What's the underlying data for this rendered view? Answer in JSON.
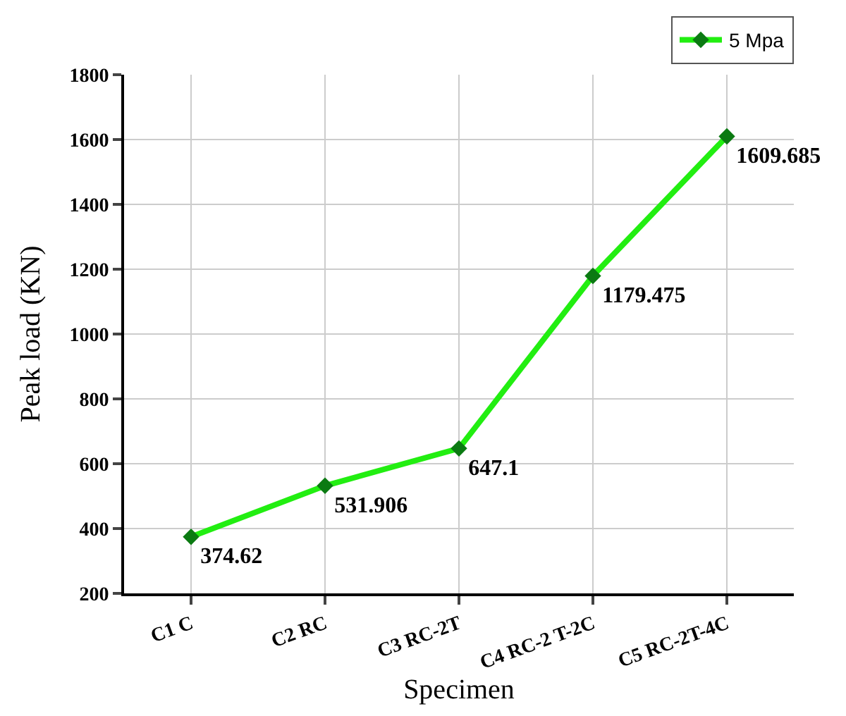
{
  "chart_data": {
    "type": "line",
    "xlabel": "Specimen",
    "ylabel": "Peak load (KN)",
    "categories": [
      "C1 C",
      "C2 RC",
      "C3 RC-2T",
      "C4 RC-2 T-2C",
      "C5 RC-2T-4C"
    ],
    "series": [
      {
        "name": "5 Mpa",
        "color": "#22ee11",
        "colors": [
          "#0b7a12",
          "#0b7a12",
          "#0b7a12",
          "#0b7a12",
          "#0b7a12"
        ],
        "values": [
          374.62,
          531.906,
          647.1,
          1179.475,
          1609.685
        ]
      }
    ],
    "ylim": [
      200,
      1800
    ],
    "yticks": [
      200,
      400,
      600,
      800,
      1000,
      1200,
      1400,
      1600,
      1800
    ],
    "grid": true,
    "legend": "top right",
    "marker": "diamond",
    "line_style": "solid",
    "data_labels": true
  }
}
